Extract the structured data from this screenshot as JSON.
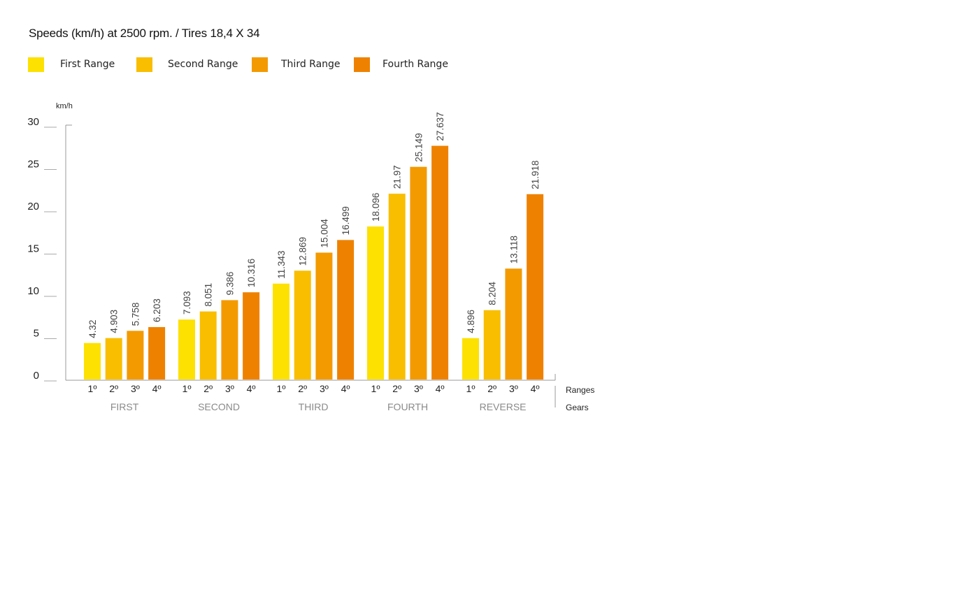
{
  "title": "Speeds (km/h) at 2500 rpm. / Tires 18,4 X 34",
  "legend": [
    {
      "label": "First Range",
      "color": "#FDE100"
    },
    {
      "label": "Second Range",
      "color": "#F9BE00"
    },
    {
      "label": "Third Range",
      "color": "#F39A00"
    },
    {
      "label": "Fourth Range",
      "color": "#EE8200"
    }
  ],
  "chart_data": {
    "type": "bar",
    "ylabel": "km/h",
    "xlabel": "",
    "ylim": [
      0,
      30
    ],
    "yticks": [
      "0",
      "5",
      "10",
      "15",
      "20",
      "25",
      "30"
    ],
    "groups": [
      "FIRST",
      "SECOND",
      "THIRD",
      "FOURTH",
      "REVERSE"
    ],
    "categories": [
      "1º",
      "2º",
      "3º",
      "4º"
    ],
    "axis_row_labels": {
      "categories": "Ranges",
      "groups": "Gears"
    },
    "series_colors": [
      "#FDE100",
      "#F9BE00",
      "#F39A00",
      "#EE8200"
    ],
    "values": [
      [
        4.32,
        4.903,
        5.758,
        6.203
      ],
      [
        7.093,
        8.051,
        9.386,
        10.316
      ],
      [
        11.343,
        12.869,
        15.004,
        16.499
      ],
      [
        18.096,
        21.97,
        25.149,
        27.637
      ],
      [
        4.896,
        8.204,
        13.118,
        21.918
      ]
    ],
    "value_labels": [
      [
        "4.32",
        "4.903",
        "5.758",
        "6.203"
      ],
      [
        "7.093",
        "8.051",
        "9.386",
        "10.316"
      ],
      [
        "11.343",
        "12.869",
        "15.004",
        "16.499"
      ],
      [
        "18.096",
        "21.97",
        "25.149",
        "27.637"
      ],
      [
        "4.896",
        "8.204",
        "13.118",
        "21.918"
      ]
    ],
    "grid": false
  }
}
